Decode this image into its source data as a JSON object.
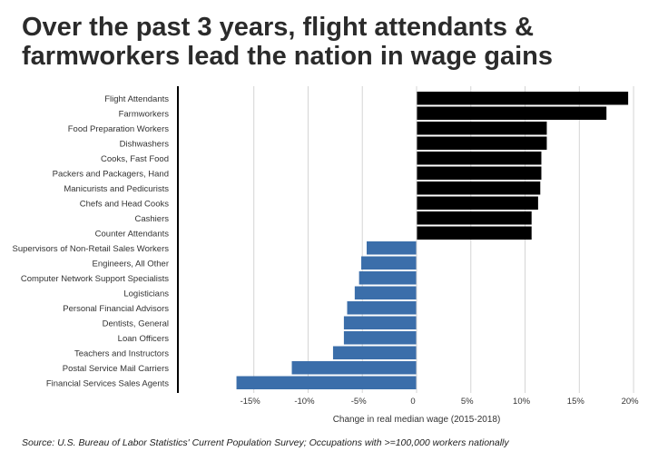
{
  "title": "Over the past 3 years, flight attendants & farmworkers lead the nation in wage gains",
  "source": "Source: U.S. Bureau of Labor Statistics' Current Population Survey; Occupations with >=100,000 workers nationally",
  "colors": {
    "positive": "#000000",
    "negative": "#3b6eaa",
    "grid": "#d4d4d4",
    "axis": "#000000",
    "text": "#333333"
  },
  "chart_data": {
    "type": "bar",
    "orientation": "horizontal",
    "categories": [
      "Flight Attendants",
      "Farmworkers",
      "Food Preparation Workers",
      "Dishwashers",
      "Cooks, Fast Food",
      "Packers and Packagers, Hand",
      "Manicurists and Pedicurists",
      "Chefs and Head Cooks",
      "Cashiers",
      "Counter Attendants",
      "Supervisors of Non-Retail Sales Workers",
      "Engineers, All Other",
      "Computer Network Support Specialists",
      "Logisticians",
      "Personal Financial Advisors",
      "Dentists, General",
      "Loan Officers",
      "Teachers and Instructors",
      "Postal Service Mail Carriers",
      "Financial Services Sales Agents"
    ],
    "values": [
      19.5,
      17.5,
      12,
      12,
      11.5,
      11.5,
      11.4,
      11.2,
      10.6,
      10.6,
      -4.6,
      -5.1,
      -5.3,
      -5.7,
      -6.4,
      -6.7,
      -6.7,
      -7.7,
      -11.5,
      -16.6
    ],
    "xlabel": "Change in real median wage (2015-2018)",
    "ylabel": "",
    "xlim": [
      -22,
      22
    ],
    "xticks": [
      -15,
      -10,
      -5,
      0,
      5,
      10,
      15,
      20
    ],
    "xtick_labels": [
      "-15%",
      "-10%",
      "-5%",
      "0",
      "5%",
      "10%",
      "15%",
      "20%"
    ],
    "grid": true,
    "legend": "none"
  }
}
